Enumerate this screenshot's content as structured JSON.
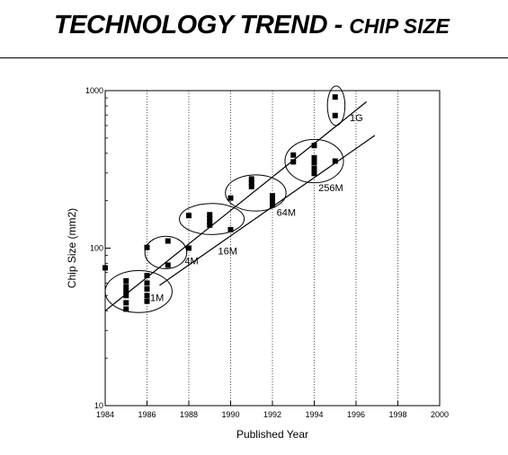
{
  "header": {
    "title_main": "TECHNOLOGY TREND - ",
    "title_sub": "CHIP SIZE"
  },
  "chart_data": {
    "type": "scatter",
    "title": "TECHNOLOGY TREND - CHIP SIZE",
    "xlabel": "Published Year",
    "ylabel": "Chip Size (mm2)",
    "xlim": [
      1984,
      2000
    ],
    "ylim": [
      10,
      1000
    ],
    "yscale": "log",
    "x_ticks": [
      1984,
      1986,
      1988,
      1990,
      1992,
      1994,
      1996,
      1998,
      2000
    ],
    "x_tick_labels": [
      "1984",
      "1986",
      "1988",
      "1990",
      "1992",
      "1994",
      "1996",
      "1998",
      "2000"
    ],
    "y_ticks": [
      10,
      100,
      1000
    ],
    "y_tick_labels": [
      "10",
      "100",
      "1000"
    ],
    "grid": "vertical-dotted",
    "points": [
      {
        "x": 1984.0,
        "y": 75
      },
      {
        "x": 1985.0,
        "y": 62
      },
      {
        "x": 1985.0,
        "y": 57
      },
      {
        "x": 1985.0,
        "y": 53
      },
      {
        "x": 1985.0,
        "y": 50
      },
      {
        "x": 1985.0,
        "y": 45
      },
      {
        "x": 1985.0,
        "y": 41
      },
      {
        "x": 1986.0,
        "y": 67
      },
      {
        "x": 1986.0,
        "y": 60
      },
      {
        "x": 1986.0,
        "y": 55
      },
      {
        "x": 1986.0,
        "y": 50
      },
      {
        "x": 1986.0,
        "y": 46
      },
      {
        "x": 1986.0,
        "y": 101
      },
      {
        "x": 1987.0,
        "y": 111
      },
      {
        "x": 1987.0,
        "y": 78
      },
      {
        "x": 1988.0,
        "y": 161
      },
      {
        "x": 1988.0,
        "y": 100
      },
      {
        "x": 1989.0,
        "y": 163
      },
      {
        "x": 1989.0,
        "y": 155
      },
      {
        "x": 1989.0,
        "y": 147
      },
      {
        "x": 1989.0,
        "y": 140
      },
      {
        "x": 1990.0,
        "y": 131
      },
      {
        "x": 1990.0,
        "y": 208
      },
      {
        "x": 1991.0,
        "y": 275
      },
      {
        "x": 1991.0,
        "y": 260
      },
      {
        "x": 1991.0,
        "y": 246
      },
      {
        "x": 1992.0,
        "y": 215
      },
      {
        "x": 1992.0,
        "y": 201
      },
      {
        "x": 1992.0,
        "y": 188
      },
      {
        "x": 1993.0,
        "y": 390
      },
      {
        "x": 1993.0,
        "y": 353
      },
      {
        "x": 1994.0,
        "y": 448
      },
      {
        "x": 1994.0,
        "y": 375
      },
      {
        "x": 1994.0,
        "y": 348
      },
      {
        "x": 1994.0,
        "y": 320
      },
      {
        "x": 1994.0,
        "y": 298
      },
      {
        "x": 1995.0,
        "y": 357
      },
      {
        "x": 1995.0,
        "y": 911
      },
      {
        "x": 1995.0,
        "y": 695
      }
    ],
    "trend_lines": [
      {
        "x": [
          1984.0,
          1996.5
        ],
        "y": [
          40,
          850
        ]
      },
      {
        "x": [
          1986.6,
          1996.9
        ],
        "y": [
          58,
          520
        ]
      }
    ],
    "groups": [
      {
        "label": "1M",
        "label_at": [
          1986.15,
          46
        ],
        "cx": 1985.6,
        "cy": 53,
        "rx": 1.6,
        "ry_top": 72,
        "ry_bottom": 39
      },
      {
        "label": "4M",
        "label_at": [
          1987.8,
          79
        ],
        "cx": 1986.9,
        "cy": 94,
        "rx": 1.0,
        "ry_top": 119,
        "ry_bottom": 74
      },
      {
        "label": "16M",
        "label_at": [
          1989.4,
          91
        ],
        "cx": 1989.1,
        "cy": 155,
        "rx": 1.55,
        "ry_top": 192,
        "ry_bottom": 122
      },
      {
        "label": "64M",
        "label_at": [
          1992.2,
          160
        ],
        "cx": 1991.2,
        "cy": 227,
        "rx": 1.45,
        "ry_top": 292,
        "ry_bottom": 172
      },
      {
        "label": "256M",
        "label_at": [
          1994.2,
          230
        ],
        "cx": 1994.0,
        "cy": 365,
        "rx": 1.4,
        "ry_top": 490,
        "ry_bottom": 260
      },
      {
        "label": "1G",
        "label_at": [
          1995.7,
          640
        ],
        "cx": 1995.05,
        "cy": 800,
        "rx": 0.42,
        "ry_top": 1070,
        "ry_bottom": 600
      }
    ]
  }
}
